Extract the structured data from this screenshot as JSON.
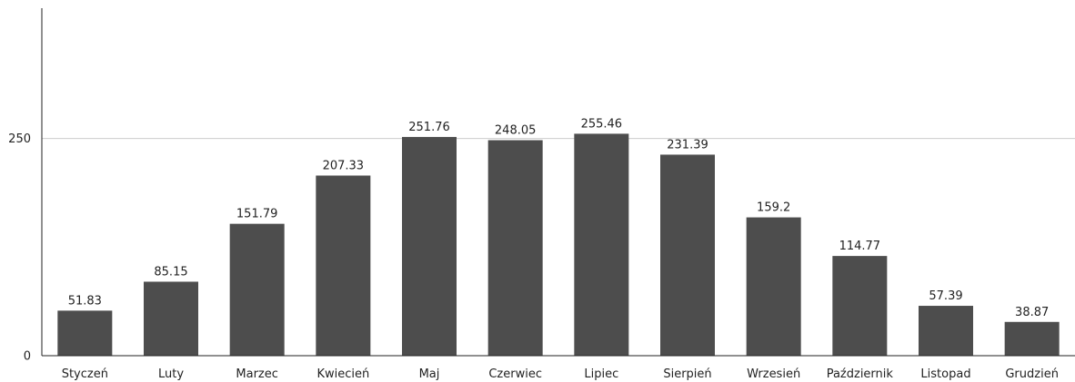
{
  "chart_data": {
    "type": "bar",
    "title": "",
    "xlabel": "",
    "ylabel": "",
    "categories": [
      "Styczeń",
      "Luty",
      "Marzec",
      "Kwiecień",
      "Maj",
      "Czerwiec",
      "Lipiec",
      "Sierpień",
      "Wrzesień",
      "Październik",
      "Listopad",
      "Grudzień"
    ],
    "values": [
      51.83,
      85.15,
      151.79,
      207.33,
      251.76,
      248.05,
      255.46,
      231.39,
      159.2,
      114.77,
      57.39,
      38.87
    ],
    "ylim": [
      0,
      400
    ],
    "yticks": [
      0,
      250
    ],
    "grid": true,
    "bar_color": "#4d4d4d",
    "grid_color": "#cccccc"
  }
}
